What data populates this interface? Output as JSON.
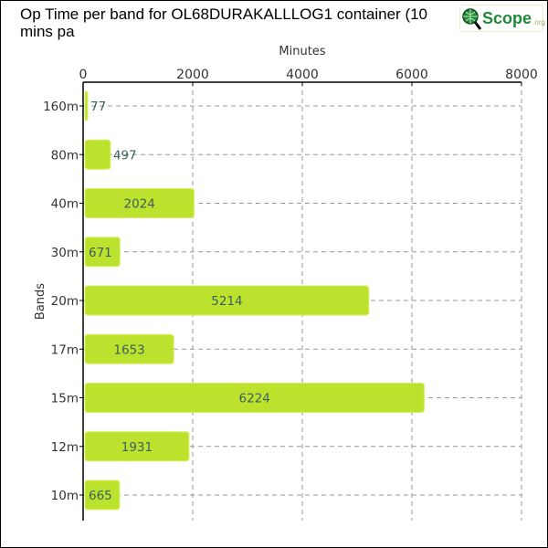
{
  "chart_data": {
    "type": "bar",
    "orientation": "horizontal",
    "title": "Op Time per band for OL68DURAKALLLOG1 container (10 mins pa",
    "xlabel": "Minutes",
    "ylabel": "Bands",
    "xlim": [
      0,
      8000
    ],
    "xticks": [
      "0",
      "2000",
      "4000",
      "6000",
      "8000"
    ],
    "categories": [
      "160m",
      "80m",
      "40m",
      "30m",
      "20m",
      "17m",
      "15m",
      "12m",
      "10m"
    ],
    "values": [
      77,
      497,
      2024,
      671,
      5214,
      1653,
      6224,
      1931,
      665
    ],
    "grid": true,
    "bar_color": "#bde22e",
    "label_color": "#3d5f5f"
  },
  "logo": {
    "text": "Scope",
    "suffix": ".org"
  }
}
